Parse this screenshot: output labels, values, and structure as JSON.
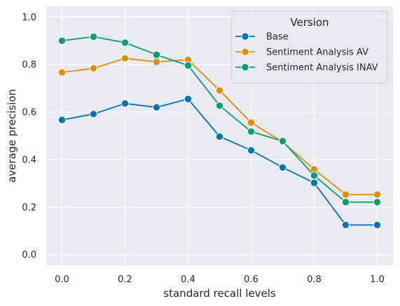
{
  "chart_data": {
    "type": "line",
    "xlabel": "standard recall levels",
    "ylabel": "average precision",
    "x": [
      0.0,
      0.1,
      0.2,
      0.3,
      0.4,
      0.5,
      0.6,
      0.7,
      0.8,
      0.9,
      1.0
    ],
    "x_ticks": [
      0.0,
      0.2,
      0.4,
      0.6,
      0.8,
      1.0
    ],
    "x_tick_labels": [
      "0.0",
      "0.2",
      "0.4",
      "0.6",
      "0.8",
      "1.0"
    ],
    "y_ticks": [
      0.0,
      0.2,
      0.4,
      0.6,
      0.8,
      1.0
    ],
    "y_tick_labels": [
      "0.0",
      "0.2",
      "0.4",
      "0.6",
      "0.8",
      "1.0"
    ],
    "xlim": [
      -0.05,
      1.05
    ],
    "ylim": [
      -0.045,
      1.045
    ],
    "grid": true,
    "legend": {
      "title": "Version",
      "placement": "top-right"
    },
    "series": [
      {
        "name": "Base",
        "color": "#0173b2",
        "values": [
          0.567,
          0.592,
          0.636,
          0.62,
          0.655,
          0.497,
          0.439,
          0.367,
          0.302,
          0.125,
          0.125
        ]
      },
      {
        "name": "Sentiment Analysis AV",
        "color": "#de8f05",
        "values": [
          0.767,
          0.784,
          0.826,
          0.811,
          0.82,
          0.691,
          0.556,
          0.474,
          0.359,
          0.253,
          0.253
        ]
      },
      {
        "name": "Sentiment Analysis INAV",
        "color": "#029e73",
        "values": [
          0.9,
          0.917,
          0.892,
          0.841,
          0.796,
          0.627,
          0.518,
          0.478,
          0.333,
          0.221,
          0.221
        ]
      }
    ]
  }
}
